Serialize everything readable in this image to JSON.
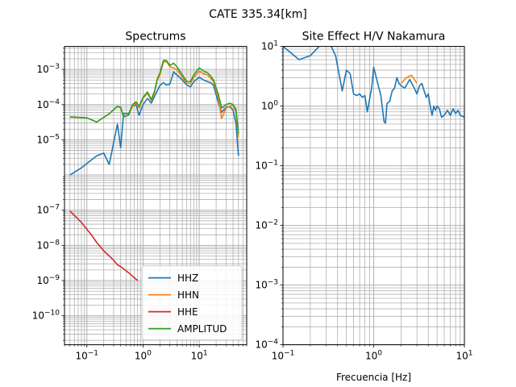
{
  "figure": {
    "suptitle": "CATE 335.34[km]"
  },
  "chart_data": [
    {
      "type": "line",
      "title": "Spectrums",
      "xlabel": "",
      "ylabel": "",
      "xscale": "log",
      "yscale": "log",
      "xlim": [
        0.04,
        70
      ],
      "ylim": [
        1.5e-11,
        0.0045
      ],
      "grid": true,
      "legend_position": "lower-right",
      "xticks": [
        {
          "v": 0.1,
          "base": "10",
          "exp": "−1"
        },
        {
          "v": 1,
          "base": "10",
          "exp": "0"
        },
        {
          "v": 10,
          "base": "10",
          "exp": "1"
        }
      ],
      "yticks": [
        {
          "v": 1e-10,
          "base": "10",
          "exp": "−10"
        },
        {
          "v": 1e-09,
          "base": "10",
          "exp": "−9"
        },
        {
          "v": 1e-08,
          "base": "10",
          "exp": "−8"
        },
        {
          "v": 1e-07,
          "base": "10",
          "exp": "−7"
        },
        {
          "v": 1e-05,
          "base": "10",
          "exp": "−5"
        },
        {
          "v": 0.0001,
          "base": "10",
          "exp": "−4"
        },
        {
          "v": 0.001,
          "base": "10",
          "exp": "−3"
        }
      ],
      "series": [
        {
          "name": "HHZ",
          "color": "#1f77b4",
          "points": [
            [
              0.05,
              1e-06
            ],
            [
              0.08,
              1.6e-06
            ],
            [
              0.15,
              3.5e-06
            ],
            [
              0.2,
              4.2e-06
            ],
            [
              0.25,
              2e-06
            ],
            [
              0.35,
              2.8e-05
            ],
            [
              0.4,
              6e-06
            ],
            [
              0.45,
              5.5e-05
            ],
            [
              0.55,
              5.5e-05
            ],
            [
              0.65,
              9e-05
            ],
            [
              0.75,
              0.0001
            ],
            [
              0.85,
              5e-05
            ],
            [
              1.0,
              0.0001
            ],
            [
              1.2,
              0.00015
            ],
            [
              1.4,
              0.00011
            ],
            [
              1.6,
              0.00017
            ],
            [
              1.8,
              0.00025
            ],
            [
              2.0,
              0.00035
            ],
            [
              2.3,
              0.00042
            ],
            [
              2.6,
              0.00036
            ],
            [
              3.0,
              0.00038
            ],
            [
              3.5,
              0.00085
            ],
            [
              4.0,
              0.0007
            ],
            [
              5.0,
              0.0005
            ],
            [
              6.0,
              0.00036
            ],
            [
              7.0,
              0.00032
            ],
            [
              8.0,
              0.00045
            ],
            [
              10.0,
              0.0006
            ],
            [
              12.0,
              0.0005
            ],
            [
              14.0,
              0.00045
            ],
            [
              16.0,
              0.00042
            ],
            [
              18.0,
              0.00035
            ],
            [
              22.0,
              0.00011
            ],
            [
              25.0,
              6e-05
            ],
            [
              30.0,
              8.5e-05
            ],
            [
              35.0,
              8.8e-05
            ],
            [
              40.0,
              7e-05
            ],
            [
              45.0,
              3e-05
            ],
            [
              50.0,
              3.5e-06
            ]
          ]
        },
        {
          "name": "HHN",
          "color": "#ff7f0e",
          "points": [
            [
              0.05,
              4.4e-05
            ],
            [
              0.1,
              4.2e-05
            ],
            [
              0.15,
              3.2e-05
            ],
            [
              0.25,
              5.5e-05
            ],
            [
              0.35,
              9e-05
            ],
            [
              0.4,
              8e-05
            ],
            [
              0.45,
              4.5e-05
            ],
            [
              0.55,
              5e-05
            ],
            [
              0.65,
              9e-05
            ],
            [
              0.75,
              0.00011
            ],
            [
              0.85,
              8e-05
            ],
            [
              1.0,
              0.00015
            ],
            [
              1.2,
              0.00021
            ],
            [
              1.4,
              0.00013
            ],
            [
              1.6,
              0.00022
            ],
            [
              1.8,
              0.0005
            ],
            [
              2.0,
              0.0007
            ],
            [
              2.3,
              0.0016
            ],
            [
              2.6,
              0.0017
            ],
            [
              3.0,
              0.0012
            ],
            [
              3.5,
              0.0011
            ],
            [
              4.0,
              0.001
            ],
            [
              5.0,
              0.0006
            ],
            [
              6.0,
              0.0004
            ],
            [
              7.0,
              0.0004
            ],
            [
              8.0,
              0.0006
            ],
            [
              10.0,
              0.0009
            ],
            [
              12.0,
              0.00075
            ],
            [
              14.0,
              0.0007
            ],
            [
              16.0,
              0.00055
            ],
            [
              18.0,
              0.00045
            ],
            [
              22.0,
              0.00015
            ],
            [
              25.0,
              4e-05
            ],
            [
              30.0,
              8e-05
            ],
            [
              35.0,
              9e-05
            ],
            [
              40.0,
              9.5e-05
            ],
            [
              45.0,
              6e-05
            ],
            [
              50.0,
              1.2e-05
            ]
          ]
        },
        {
          "name": "HHE",
          "color": "#d62728",
          "points": [
            [
              0.05,
              9.5e-08
            ],
            [
              0.08,
              4.5e-08
            ],
            [
              0.12,
              2e-08
            ],
            [
              0.15,
              1.2e-08
            ],
            [
              0.2,
              7e-09
            ],
            [
              0.25,
              5e-09
            ],
            [
              0.3,
              3.8e-09
            ],
            [
              0.35,
              2.8e-09
            ],
            [
              0.4,
              2.5e-09
            ],
            [
              0.5,
              1.9e-09
            ],
            [
              0.6,
              1.5e-09
            ],
            [
              0.7,
              1.2e-09
            ],
            [
              0.8,
              1e-09
            ]
          ]
        },
        {
          "name": "AMPLITUD",
          "color": "#2ca02c",
          "points": [
            [
              0.05,
              4.5e-05
            ],
            [
              0.1,
              4.2e-05
            ],
            [
              0.15,
              3.2e-05
            ],
            [
              0.25,
              5.5e-05
            ],
            [
              0.35,
              9e-05
            ],
            [
              0.4,
              8.5e-05
            ],
            [
              0.45,
              4.5e-05
            ],
            [
              0.55,
              5e-05
            ],
            [
              0.65,
              0.0001
            ],
            [
              0.75,
              0.00012
            ],
            [
              0.85,
              9e-05
            ],
            [
              1.0,
              0.00016
            ],
            [
              1.2,
              0.00023
            ],
            [
              1.4,
              0.00014
            ],
            [
              1.6,
              0.00024
            ],
            [
              1.8,
              0.00055
            ],
            [
              2.0,
              0.0008
            ],
            [
              2.3,
              0.0018
            ],
            [
              2.6,
              0.0018
            ],
            [
              3.0,
              0.0013
            ],
            [
              3.5,
              0.0015
            ],
            [
              4.0,
              0.0012
            ],
            [
              5.0,
              0.0007
            ],
            [
              6.0,
              0.00045
            ],
            [
              7.0,
              0.00045
            ],
            [
              8.0,
              0.0007
            ],
            [
              10.0,
              0.0011
            ],
            [
              12.0,
              0.0009
            ],
            [
              14.0,
              0.0008
            ],
            [
              16.0,
              0.00065
            ],
            [
              18.0,
              0.0005
            ],
            [
              22.0,
              0.00019
            ],
            [
              25.0,
              8e-05
            ],
            [
              30.0,
              0.0001
            ],
            [
              35.0,
              0.00011
            ],
            [
              40.0,
              0.0001
            ],
            [
              45.0,
              7.5e-05
            ],
            [
              50.0,
              1.5e-05
            ]
          ]
        }
      ]
    },
    {
      "type": "line",
      "title": "Site Effect H/V Nakamura",
      "xlabel": "Frecuencia [Hz]",
      "ylabel": "",
      "xscale": "log",
      "yscale": "log",
      "xlim": [
        0.1,
        10
      ],
      "ylim": [
        0.0001,
        10
      ],
      "grid": true,
      "xticks": [
        {
          "v": 0.1,
          "base": "10",
          "exp": "−1"
        },
        {
          "v": 1,
          "base": "10",
          "exp": "0"
        },
        {
          "v": 10,
          "base": "10",
          "exp": "1"
        }
      ],
      "yticks": [
        {
          "v": 0.0001,
          "base": "10",
          "exp": "−4"
        },
        {
          "v": 0.001,
          "base": "10",
          "exp": "−3"
        },
        {
          "v": 0.01,
          "base": "10",
          "exp": "−2"
        },
        {
          "v": 0.1,
          "base": "10",
          "exp": "−1"
        },
        {
          "v": 1,
          "base": "10",
          "exp": "0"
        },
        {
          "v": 10,
          "base": "10",
          "exp": "1"
        }
      ],
      "series": [
        {
          "color": "#ff7f0e",
          "points": [
            [
              2.0,
              2.4
            ],
            [
              2.3,
              3.0
            ],
            [
              2.6,
              3.3
            ],
            [
              3.0,
              2.4
            ]
          ]
        },
        {
          "color": "#1f77b4",
          "points": [
            [
              0.1,
              10
            ],
            [
              0.12,
              8.0
            ],
            [
              0.15,
              6.0
            ],
            [
              0.2,
              7.0
            ],
            [
              0.25,
              10
            ],
            [
              0.3,
              15
            ],
            [
              0.38,
              7.0
            ],
            [
              0.45,
              1.8
            ],
            [
              0.5,
              4.0
            ],
            [
              0.55,
              3.5
            ],
            [
              0.6,
              1.6
            ],
            [
              0.65,
              1.5
            ],
            [
              0.7,
              1.6
            ],
            [
              0.75,
              1.4
            ],
            [
              0.8,
              1.5
            ],
            [
              0.85,
              0.8
            ],
            [
              0.9,
              1.3
            ],
            [
              0.95,
              2.0
            ],
            [
              1.0,
              4.5
            ],
            [
              1.1,
              2.5
            ],
            [
              1.2,
              1.5
            ],
            [
              1.3,
              0.55
            ],
            [
              1.35,
              0.52
            ],
            [
              1.4,
              1.1
            ],
            [
              1.5,
              1.2
            ],
            [
              1.6,
              1.8
            ],
            [
              1.7,
              2.0
            ],
            [
              1.8,
              3.0
            ],
            [
              1.9,
              2.4
            ],
            [
              2.0,
              2.2
            ],
            [
              2.2,
              2.0
            ],
            [
              2.5,
              2.8
            ],
            [
              2.8,
              2.0
            ],
            [
              3.0,
              1.6
            ],
            [
              3.2,
              2.2
            ],
            [
              3.4,
              2.4
            ],
            [
              3.6,
              1.8
            ],
            [
              3.8,
              1.4
            ],
            [
              4.0,
              1.6
            ],
            [
              4.2,
              1.0
            ],
            [
              4.4,
              0.7
            ],
            [
              4.6,
              1.0
            ],
            [
              4.8,
              0.85
            ],
            [
              5.0,
              1.0
            ],
            [
              5.3,
              0.9
            ],
            [
              5.6,
              0.65
            ],
            [
              6.0,
              0.7
            ],
            [
              6.5,
              0.85
            ],
            [
              7.0,
              0.7
            ],
            [
              7.5,
              0.9
            ],
            [
              8.0,
              0.75
            ],
            [
              8.5,
              0.85
            ],
            [
              9.0,
              0.7
            ],
            [
              10.0,
              0.65
            ]
          ]
        }
      ]
    }
  ]
}
